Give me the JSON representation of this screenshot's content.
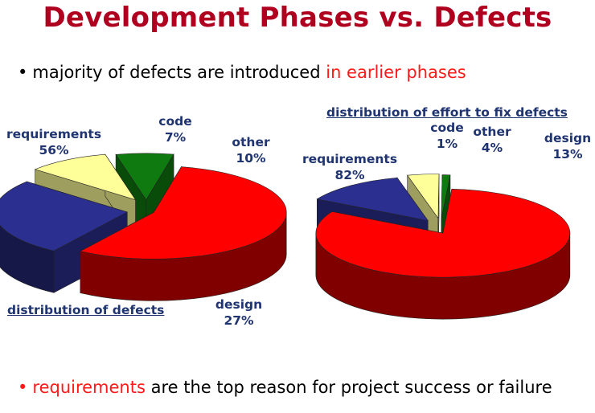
{
  "slide": {
    "title": "Development Phases vs. Defects",
    "bullet1": {
      "dot": "•",
      "text": "majority of defects are introduced ",
      "highlight": "in earlier phases"
    },
    "bullet2": {
      "dot": "•",
      "highlight": "requirements",
      "text": " are the top reason for project success or failure"
    }
  },
  "colors": {
    "title": "#b00020",
    "highlight": "#ff1a1a",
    "label": "#1f3470",
    "requirements": "#ff0000",
    "design": "#2b2f8f",
    "other": "#ffff99",
    "code": "#0f7a0f"
  },
  "chart_data": [
    {
      "type": "pie",
      "caption": "distribution of defects",
      "slices": [
        {
          "name": "requirements",
          "value": 56,
          "label": "56%"
        },
        {
          "name": "design",
          "value": 27,
          "label": "27%"
        },
        {
          "name": "other",
          "value": 10,
          "label": "10%"
        },
        {
          "name": "code",
          "value": 7,
          "label": "7%"
        }
      ]
    },
    {
      "type": "pie",
      "caption": "distribution of effort to fix defects",
      "slices": [
        {
          "name": "requirements",
          "value": 82,
          "label": "82%"
        },
        {
          "name": "design",
          "value": 13,
          "label": "13%"
        },
        {
          "name": "other",
          "value": 4,
          "label": "4%"
        },
        {
          "name": "code",
          "value": 1,
          "label": "1%"
        }
      ]
    }
  ]
}
